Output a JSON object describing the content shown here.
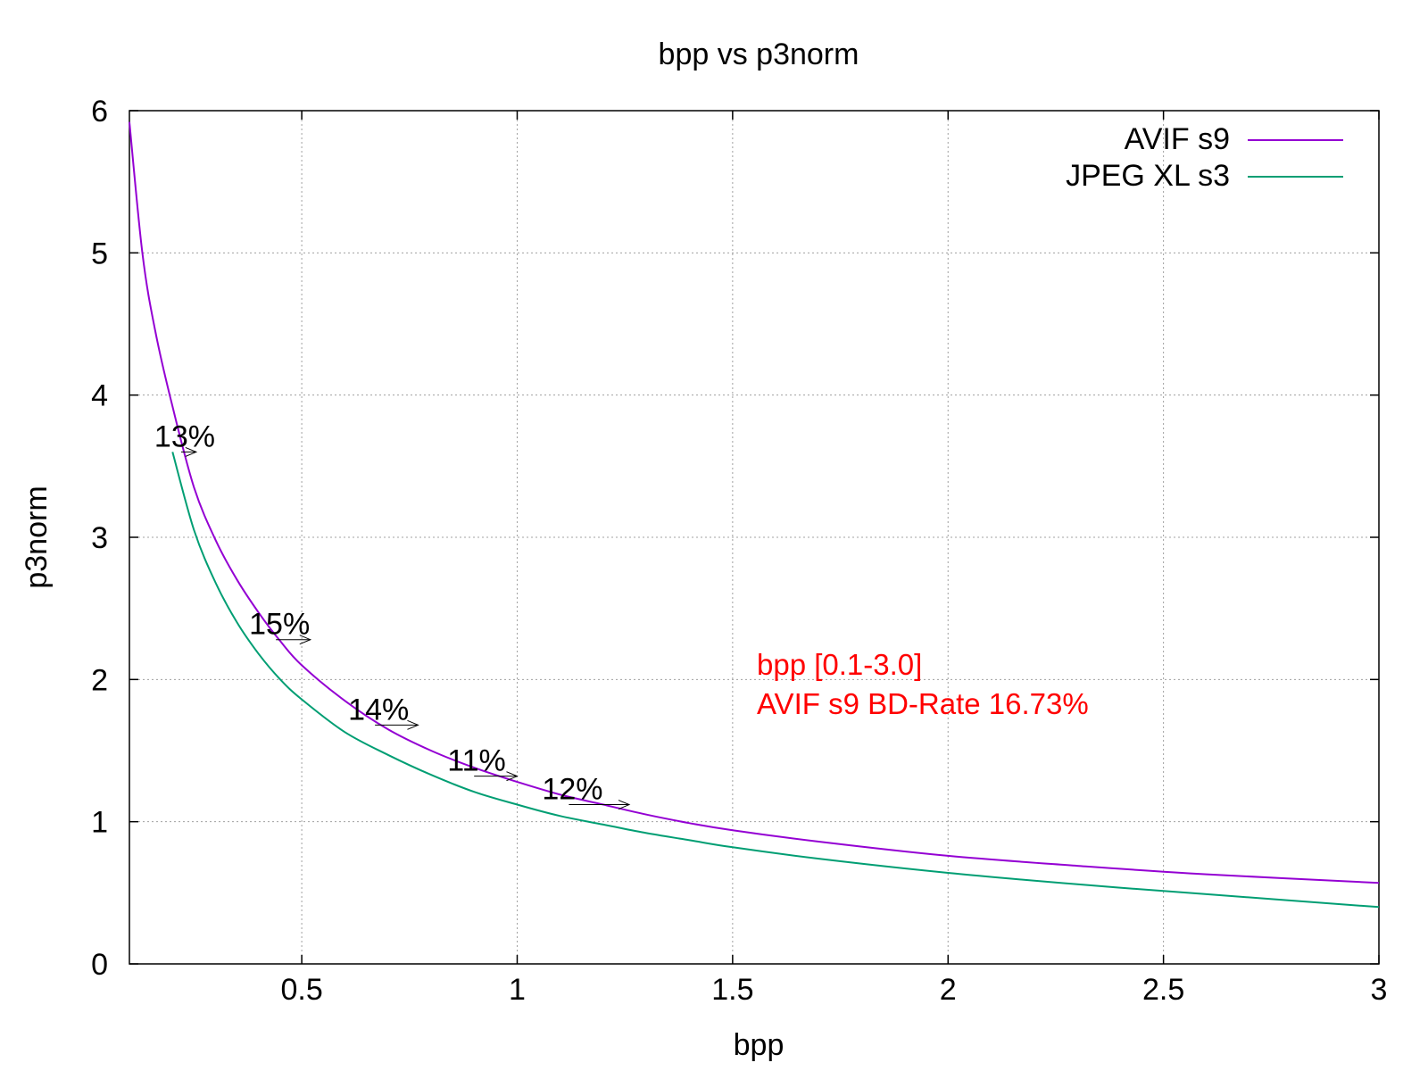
{
  "chart_data": {
    "type": "line",
    "title": "bpp vs p3norm",
    "xlabel": "bpp",
    "ylabel": "p3norm",
    "xlim": [
      0.1,
      3.0
    ],
    "ylim": [
      0,
      6
    ],
    "xticks": [
      0.5,
      1,
      1.5,
      2,
      2.5,
      3
    ],
    "xtick_labels": [
      "0.5",
      "1",
      "1.5",
      "2",
      "2.5",
      "3"
    ],
    "yticks": [
      0,
      1,
      2,
      3,
      4,
      5,
      6
    ],
    "ytick_labels": [
      "0",
      "1",
      "2",
      "3",
      "4",
      "5",
      "6"
    ],
    "grid": true,
    "legend_position": "top-right",
    "series": [
      {
        "name": "AVIF s9",
        "color": "#9400d3",
        "x": [
          0.1,
          0.13,
          0.16,
          0.2,
          0.25,
          0.3,
          0.35,
          0.4,
          0.45,
          0.5,
          0.6,
          0.7,
          0.8,
          0.9,
          1.0,
          1.1,
          1.2,
          1.3,
          1.4,
          1.5,
          1.7,
          2.0,
          2.3,
          2.6,
          3.0
        ],
        "y": [
          5.92,
          5.0,
          4.45,
          3.92,
          3.35,
          2.98,
          2.7,
          2.47,
          2.27,
          2.1,
          1.85,
          1.65,
          1.5,
          1.38,
          1.28,
          1.19,
          1.12,
          1.05,
          0.99,
          0.94,
          0.86,
          0.76,
          0.69,
          0.63,
          0.57
        ]
      },
      {
        "name": "JPEG XL s3",
        "color": "#009e73",
        "x": [
          0.2,
          0.25,
          0.3,
          0.35,
          0.4,
          0.45,
          0.5,
          0.6,
          0.7,
          0.8,
          0.9,
          1.0,
          1.1,
          1.2,
          1.3,
          1.4,
          1.5,
          1.7,
          2.0,
          2.3,
          2.6,
          3.0
        ],
        "y": [
          3.6,
          3.05,
          2.68,
          2.4,
          2.18,
          2.0,
          1.86,
          1.63,
          1.47,
          1.33,
          1.21,
          1.12,
          1.04,
          0.98,
          0.92,
          0.87,
          0.82,
          0.74,
          0.64,
          0.56,
          0.49,
          0.4
        ]
      }
    ],
    "annotations": [
      {
        "label": "13%",
        "x": 0.22,
        "y": 3.6,
        "x2": 0.255
      },
      {
        "label": "15%",
        "x": 0.44,
        "y": 2.28,
        "x2": 0.52
      },
      {
        "label": "14%",
        "x": 0.67,
        "y": 1.68,
        "x2": 0.77
      },
      {
        "label": "11%",
        "x": 0.9,
        "y": 1.32,
        "x2": 1.0
      },
      {
        "label": "12%",
        "x": 1.12,
        "y": 1.12,
        "x2": 1.26
      }
    ],
    "note_lines": [
      "bpp [0.1-3.0]",
      "AVIF s9 BD-Rate 16.73%"
    ]
  }
}
